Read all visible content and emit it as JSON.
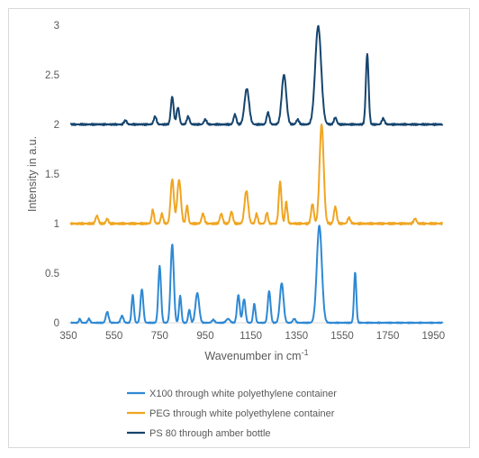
{
  "chart_data": {
    "type": "line",
    "title": "",
    "xlabel": "Wavenumber in cm",
    "xlabel_superscript": "-1",
    "ylabel": "Intensity in a.u.",
    "xlim": [
      350,
      2000
    ],
    "ylim": [
      0,
      3
    ],
    "x_ticks": [
      "350",
      "550",
      "750",
      "950",
      "1150",
      "1350",
      "1550",
      "1750",
      "1950"
    ],
    "y_ticks": [
      "0",
      "0.5",
      "1",
      "1.5",
      "2",
      "2.5",
      "3"
    ],
    "grid": false,
    "legend_position": "bottom",
    "series": [
      {
        "name": "X100 through white polyethylene container",
        "color": "#2e89d4",
        "baseline": 0.0,
        "noise": 0.006,
        "peaks": [
          [
            400,
            0.04,
            4
          ],
          [
            440,
            0.04,
            5
          ],
          [
            520,
            0.11,
            6
          ],
          [
            585,
            0.07,
            6
          ],
          [
            632,
            0.28,
            5
          ],
          [
            672,
            0.34,
            6
          ],
          [
            750,
            0.57,
            6
          ],
          [
            805,
            0.79,
            7
          ],
          [
            840,
            0.27,
            5
          ],
          [
            880,
            0.13,
            5
          ],
          [
            915,
            0.3,
            8
          ],
          [
            985,
            0.03,
            6
          ],
          [
            1050,
            0.04,
            8
          ],
          [
            1095,
            0.28,
            6
          ],
          [
            1120,
            0.24,
            6
          ],
          [
            1165,
            0.19,
            5
          ],
          [
            1230,
            0.32,
            6
          ],
          [
            1285,
            0.4,
            8
          ],
          [
            1340,
            0.04,
            6
          ],
          [
            1450,
            0.98,
            11
          ],
          [
            1607,
            0.51,
            5
          ]
        ]
      },
      {
        "name": "PEG through white polyethylene container",
        "color": "#f0a521",
        "baseline": 1.0,
        "noise": 0.012,
        "peaks": [
          [
            475,
            0.08,
            6
          ],
          [
            520,
            0.05,
            5
          ],
          [
            720,
            0.14,
            5
          ],
          [
            760,
            0.1,
            5
          ],
          [
            805,
            0.45,
            7
          ],
          [
            835,
            0.44,
            8
          ],
          [
            870,
            0.18,
            5
          ],
          [
            940,
            0.1,
            6
          ],
          [
            1020,
            0.1,
            6
          ],
          [
            1065,
            0.12,
            6
          ],
          [
            1130,
            0.33,
            8
          ],
          [
            1175,
            0.1,
            5
          ],
          [
            1220,
            0.11,
            5
          ],
          [
            1278,
            0.42,
            6
          ],
          [
            1305,
            0.22,
            5
          ],
          [
            1420,
            0.2,
            6
          ],
          [
            1460,
            1.0,
            9
          ],
          [
            1520,
            0.17,
            6
          ],
          [
            1580,
            0.06,
            6
          ],
          [
            1870,
            0.05,
            6
          ]
        ]
      },
      {
        "name": "PS 80 through amber bottle",
        "color": "#16456e",
        "baseline": 2.0,
        "noise": 0.01,
        "peaks": [
          [
            600,
            0.04,
            6
          ],
          [
            730,
            0.08,
            6
          ],
          [
            805,
            0.28,
            6
          ],
          [
            830,
            0.17,
            6
          ],
          [
            875,
            0.08,
            6
          ],
          [
            950,
            0.05,
            6
          ],
          [
            1080,
            0.1,
            6
          ],
          [
            1132,
            0.36,
            10
          ],
          [
            1225,
            0.12,
            6
          ],
          [
            1295,
            0.5,
            10
          ],
          [
            1355,
            0.05,
            6
          ],
          [
            1445,
            0.99,
            13
          ],
          [
            1520,
            0.07,
            6
          ],
          [
            1660,
            0.71,
            6
          ],
          [
            1730,
            0.06,
            6
          ]
        ]
      }
    ]
  }
}
